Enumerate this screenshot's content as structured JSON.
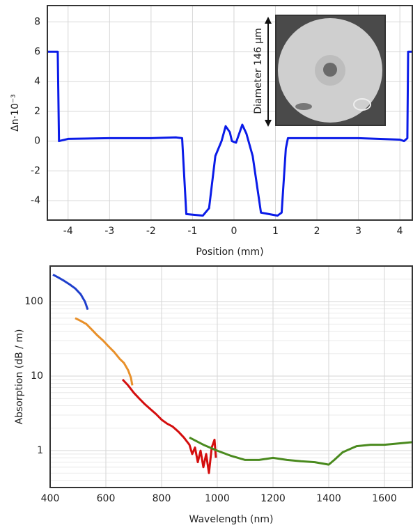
{
  "chart_data": [
    {
      "type": "line",
      "xlabel": "Position (mm)",
      "ylabel": "Δn·10⁻³",
      "annotation": "Diameter 146 µm",
      "xlim": [
        -4.5,
        4.3
      ],
      "xticks": [
        -4,
        -3,
        -2,
        -1,
        0,
        1,
        2,
        3,
        4
      ],
      "ylim": [
        -5.3,
        9.1
      ],
      "yticks": [
        -4,
        -2,
        0,
        2,
        4,
        6,
        8
      ],
      "grid": true,
      "log_y": false,
      "series": [
        {
          "color": "#0a1be8",
          "x": [
            -4.5,
            -4.25,
            -4.22,
            -4.15,
            -4.0,
            -3,
            -2,
            -1.4,
            -1.25,
            -1.15,
            -0.75,
            -0.6,
            -0.45,
            -0.3,
            -0.2,
            -0.1,
            -0.05,
            0.05,
            0.1,
            0.2,
            0.3,
            0.45,
            0.65,
            1.05,
            1.15,
            1.25,
            1.3,
            2,
            3,
            4.0,
            4.1,
            4.18,
            4.2,
            4.3
          ],
          "values": [
            6,
            6,
            0,
            0.05,
            0.15,
            0.2,
            0.2,
            0.25,
            0.2,
            -4.9,
            -5.0,
            -4.5,
            -1,
            0,
            1,
            0.6,
            0,
            -0.1,
            0.3,
            1.1,
            0.5,
            -1,
            -4.8,
            -5.0,
            -4.8,
            -0.5,
            0.2,
            0.2,
            0.2,
            0.1,
            0.0,
            0.2,
            6,
            6
          ]
        }
      ]
    },
    {
      "type": "line",
      "xlabel": "Wavelength (nm)",
      "ylabel": "Absorption (dB / m)",
      "xlim": [
        400,
        1700
      ],
      "xticks": [
        400,
        600,
        800,
        1000,
        1200,
        1400,
        1600
      ],
      "ylim": [
        0.32,
        300
      ],
      "yticks": [
        1,
        10,
        100
      ],
      "grid": true,
      "log_y": true,
      "minor_grid": true,
      "series": [
        {
          "color": "#1f3fcc",
          "x": [
            410,
            430,
            450,
            470,
            490,
            510,
            525,
            535
          ],
          "values": [
            230,
            210,
            190,
            170,
            150,
            125,
            100,
            78
          ]
        },
        {
          "color": "#e8902a",
          "x": [
            490,
            510,
            530,
            550,
            570,
            590,
            610,
            630,
            650,
            665,
            680,
            690,
            695
          ],
          "values": [
            60,
            55,
            50,
            42,
            35,
            30,
            25,
            21,
            17,
            15,
            12,
            9.5,
            7.5
          ]
        },
        {
          "color": "#d40e0e",
          "x": [
            660,
            680,
            700,
            720,
            740,
            760,
            780,
            800,
            820,
            840,
            860,
            880,
            900,
            910,
            920,
            930,
            940,
            950,
            960,
            970,
            980,
            990,
            995
          ],
          "values": [
            9,
            7.5,
            6,
            5,
            4.2,
            3.6,
            3.1,
            2.6,
            2.3,
            2.1,
            1.8,
            1.5,
            1.2,
            0.9,
            1.1,
            0.7,
            1.0,
            0.6,
            0.9,
            0.5,
            1.1,
            1.4,
            0.8
          ]
        },
        {
          "color": "#4a8a1e",
          "x": [
            900,
            950,
            1000,
            1050,
            1100,
            1150,
            1200,
            1250,
            1300,
            1350,
            1400,
            1420,
            1450,
            1500,
            1550,
            1600,
            1650,
            1700
          ],
          "values": [
            1.5,
            1.2,
            1.0,
            0.85,
            0.75,
            0.75,
            0.8,
            0.75,
            0.72,
            0.7,
            0.65,
            0.75,
            0.95,
            1.15,
            1.2,
            1.2,
            1.25,
            1.3
          ]
        }
      ]
    }
  ]
}
